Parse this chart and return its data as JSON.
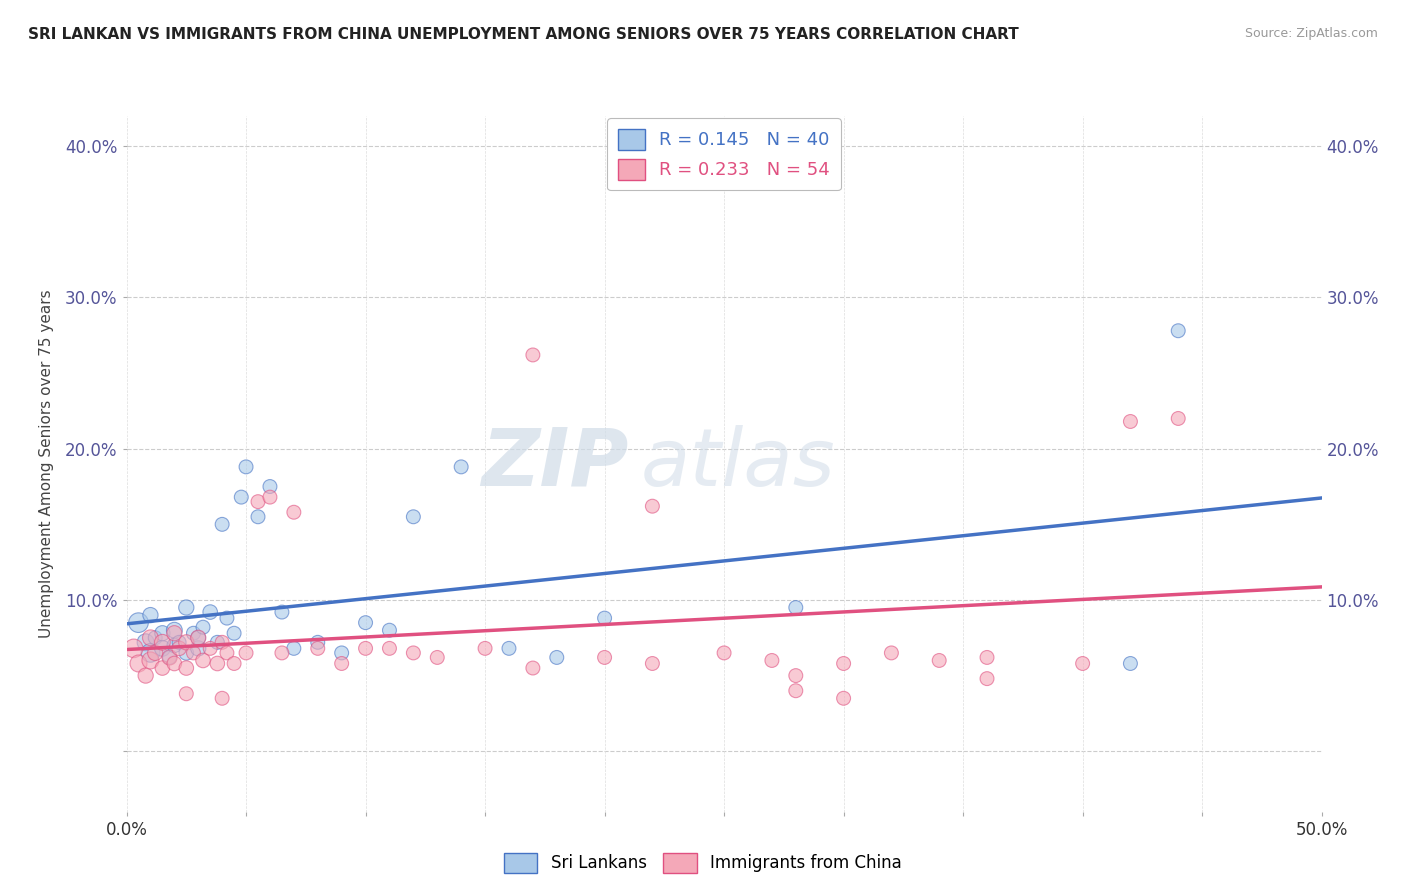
{
  "title": "SRI LANKAN VS IMMIGRANTS FROM CHINA UNEMPLOYMENT AMONG SENIORS OVER 75 YEARS CORRELATION CHART",
  "source": "Source: ZipAtlas.com",
  "ylabel": "Unemployment Among Seniors over 75 years",
  "xlim": [
    0.0,
    0.5
  ],
  "ylim": [
    -0.04,
    0.42
  ],
  "color_blue": "#a8c8e8",
  "color_pink": "#f4a8b8",
  "color_blue_line": "#4472c4",
  "color_pink_line": "#e05080",
  "watermark_zip": "ZIP",
  "watermark_atlas": "atlas",
  "sri_lankan_x": [
    0.005,
    0.008,
    0.01,
    0.01,
    0.012,
    0.015,
    0.015,
    0.018,
    0.02,
    0.02,
    0.022,
    0.025,
    0.025,
    0.028,
    0.03,
    0.03,
    0.032,
    0.035,
    0.038,
    0.04,
    0.042,
    0.045,
    0.048,
    0.05,
    0.055,
    0.06,
    0.065,
    0.07,
    0.08,
    0.09,
    0.1,
    0.11,
    0.12,
    0.14,
    0.16,
    0.18,
    0.2,
    0.28,
    0.42,
    0.44
  ],
  "sri_lankan_y": [
    0.085,
    0.072,
    0.065,
    0.09,
    0.075,
    0.068,
    0.078,
    0.062,
    0.07,
    0.08,
    0.072,
    0.095,
    0.065,
    0.078,
    0.068,
    0.075,
    0.082,
    0.092,
    0.072,
    0.15,
    0.088,
    0.078,
    0.168,
    0.188,
    0.155,
    0.175,
    0.092,
    0.068,
    0.072,
    0.065,
    0.085,
    0.08,
    0.155,
    0.188,
    0.068,
    0.062,
    0.088,
    0.095,
    0.058,
    0.278
  ],
  "sri_lankan_size": [
    200,
    150,
    180,
    120,
    100,
    130,
    120,
    100,
    110,
    130,
    100,
    120,
    110,
    100,
    120,
    110,
    100,
    110,
    100,
    100,
    100,
    100,
    100,
    100,
    100,
    100,
    100,
    100,
    100,
    100,
    100,
    100,
    100,
    100,
    100,
    100,
    100,
    100,
    100,
    100
  ],
  "china_x": [
    0.003,
    0.005,
    0.008,
    0.01,
    0.01,
    0.012,
    0.015,
    0.015,
    0.018,
    0.02,
    0.02,
    0.022,
    0.025,
    0.025,
    0.028,
    0.03,
    0.032,
    0.035,
    0.038,
    0.04,
    0.042,
    0.045,
    0.05,
    0.055,
    0.06,
    0.065,
    0.07,
    0.08,
    0.09,
    0.1,
    0.11,
    0.12,
    0.13,
    0.15,
    0.17,
    0.2,
    0.22,
    0.25,
    0.27,
    0.3,
    0.32,
    0.34,
    0.36,
    0.4,
    0.42,
    0.44,
    0.17,
    0.22,
    0.28,
    0.36,
    0.28,
    0.3,
    0.025,
    0.04
  ],
  "china_y": [
    0.068,
    0.058,
    0.05,
    0.06,
    0.075,
    0.065,
    0.055,
    0.072,
    0.062,
    0.058,
    0.078,
    0.068,
    0.072,
    0.055,
    0.065,
    0.075,
    0.06,
    0.068,
    0.058,
    0.072,
    0.065,
    0.058,
    0.065,
    0.165,
    0.168,
    0.065,
    0.158,
    0.068,
    0.058,
    0.068,
    0.068,
    0.065,
    0.062,
    0.068,
    0.055,
    0.062,
    0.058,
    0.065,
    0.06,
    0.058,
    0.065,
    0.06,
    0.062,
    0.058,
    0.218,
    0.22,
    0.262,
    0.162,
    0.05,
    0.048,
    0.04,
    0.035,
    0.038,
    0.035
  ],
  "china_size": [
    180,
    150,
    120,
    150,
    130,
    120,
    110,
    130,
    120,
    110,
    120,
    110,
    120,
    110,
    100,
    120,
    110,
    100,
    110,
    100,
    100,
    100,
    100,
    100,
    100,
    100,
    100,
    100,
    100,
    100,
    100,
    100,
    100,
    100,
    100,
    100,
    100,
    100,
    100,
    100,
    100,
    100,
    100,
    100,
    100,
    100,
    100,
    100,
    100,
    100,
    100,
    100,
    100,
    100
  ]
}
